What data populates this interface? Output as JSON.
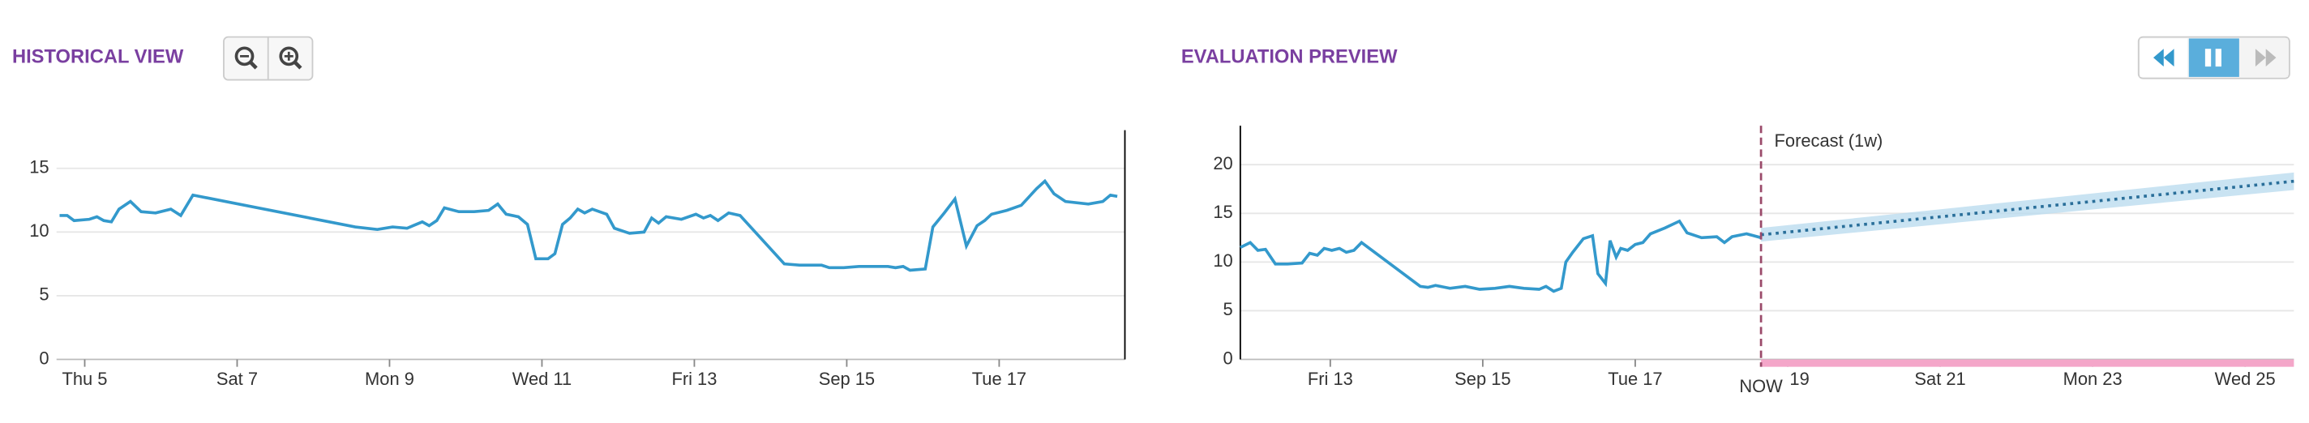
{
  "chart_data": [
    {
      "type": "line",
      "title": "HISTORICAL VIEW",
      "color": "#3399cc",
      "grid": true,
      "xlim": [
        4.63,
        18.65
      ],
      "ylim": [
        0,
        18
      ],
      "xticks": [
        {
          "value": 5,
          "label": "Thu 5"
        },
        {
          "value": 7,
          "label": "Sat 7"
        },
        {
          "value": 9,
          "label": "Mon 9"
        },
        {
          "value": 11,
          "label": "Wed 11"
        },
        {
          "value": 13,
          "label": "Fri 13"
        },
        {
          "value": 15,
          "label": "Sep 15"
        },
        {
          "value": 17,
          "label": "Tue 17"
        }
      ],
      "yticks": [
        0,
        5,
        10,
        15
      ],
      "x": [
        4.67,
        4.77,
        4.86,
        5.06,
        5.16,
        5.25,
        5.35,
        5.45,
        5.6,
        5.74,
        5.93,
        6.13,
        6.26,
        6.42,
        8.55,
        8.84,
        9.04,
        9.23,
        9.43,
        9.52,
        9.62,
        9.72,
        9.91,
        10.11,
        10.3,
        10.42,
        10.53,
        10.69,
        10.81,
        10.92,
        11.08,
        11.17,
        11.27,
        11.37,
        11.47,
        11.56,
        11.66,
        11.85,
        11.95,
        12.15,
        12.34,
        12.44,
        12.53,
        12.63,
        12.83,
        13.02,
        13.12,
        13.21,
        13.31,
        13.45,
        13.6,
        14.18,
        14.38,
        14.67,
        14.77,
        14.96,
        15.16,
        15.54,
        15.64,
        15.74,
        15.83,
        16.03,
        16.13,
        16.28,
        16.42,
        16.57,
        16.71,
        16.81,
        16.9,
        17.1,
        17.29,
        17.49,
        17.6,
        17.72,
        17.87,
        18.17,
        18.36,
        18.46,
        18.55
      ],
      "values": [
        11.3,
        11.3,
        10.9,
        11.0,
        11.2,
        10.9,
        10.8,
        11.8,
        12.4,
        11.6,
        11.5,
        11.8,
        11.3,
        12.9,
        10.4,
        10.2,
        10.4,
        10.3,
        10.8,
        10.5,
        10.9,
        11.9,
        11.6,
        11.6,
        11.7,
        12.2,
        11.4,
        11.2,
        10.6,
        7.9,
        7.9,
        8.3,
        10.6,
        11.1,
        11.8,
        11.5,
        11.8,
        11.4,
        10.3,
        9.9,
        10.0,
        11.1,
        10.7,
        11.2,
        11.0,
        11.4,
        11.1,
        11.3,
        10.9,
        11.5,
        11.3,
        7.5,
        7.4,
        7.4,
        7.2,
        7.2,
        7.3,
        7.3,
        7.2,
        7.3,
        7.0,
        7.1,
        10.4,
        11.5,
        12.6,
        8.9,
        10.5,
        10.9,
        11.4,
        11.7,
        12.1,
        13.4,
        14.0,
        13.0,
        12.4,
        12.2,
        12.4,
        12.9,
        12.8
      ]
    },
    {
      "type": "line",
      "title": "EVALUATION PREVIEW",
      "color": "#3399cc",
      "grid": true,
      "xlim": [
        11.82,
        25.64
      ],
      "ylim": [
        0,
        24
      ],
      "xticks": [
        {
          "value": 13,
          "label": "Fri 13"
        },
        {
          "value": 15,
          "label": "Sep 15"
        },
        {
          "value": 17,
          "label": "Tue 17"
        },
        19,
        {
          "value": 21,
          "label": "Sat 21"
        },
        {
          "value": 23,
          "label": "Mon 23"
        },
        {
          "value": 25,
          "label": "Wed 25"
        }
      ],
      "yticks": [
        0,
        5,
        10,
        15,
        20
      ],
      "x": [
        11.82,
        11.95,
        12.05,
        12.15,
        12.28,
        12.44,
        12.63,
        12.73,
        12.83,
        12.92,
        13.02,
        13.12,
        13.21,
        13.31,
        13.41,
        14.18,
        14.28,
        14.38,
        14.57,
        14.77,
        14.96,
        15.16,
        15.35,
        15.54,
        15.74,
        15.83,
        15.93,
        16.03,
        16.09,
        16.18,
        16.32,
        16.44,
        16.51,
        16.61,
        16.67,
        16.75,
        16.81,
        16.9,
        17.0,
        17.1,
        17.2,
        17.39,
        17.58,
        17.68,
        17.87,
        18.07,
        18.17,
        18.27,
        18.46,
        18.65
      ],
      "values": [
        11.5,
        12.0,
        11.2,
        11.3,
        9.8,
        9.8,
        9.9,
        10.9,
        10.7,
        11.4,
        11.2,
        11.4,
        11.0,
        11.2,
        12.0,
        7.5,
        7.4,
        7.6,
        7.3,
        7.5,
        7.2,
        7.3,
        7.5,
        7.3,
        7.2,
        7.5,
        7.0,
        7.3,
        10.0,
        11.0,
        12.4,
        12.7,
        8.8,
        7.8,
        12.2,
        10.5,
        11.4,
        11.2,
        11.8,
        12.0,
        12.9,
        13.5,
        14.2,
        13.0,
        12.5,
        12.6,
        12.0,
        12.6,
        12.9,
        12.5
      ],
      "now": {
        "value": 18.65,
        "label": "NOW"
      },
      "forecast": {
        "label": "Forecast (1w)",
        "x": [
          18.65,
          25.64
        ],
        "values": [
          12.8,
          18.3
        ],
        "lower": [
          12.1,
          17.4
        ],
        "upper": [
          13.5,
          19.2
        ]
      }
    }
  ]
}
